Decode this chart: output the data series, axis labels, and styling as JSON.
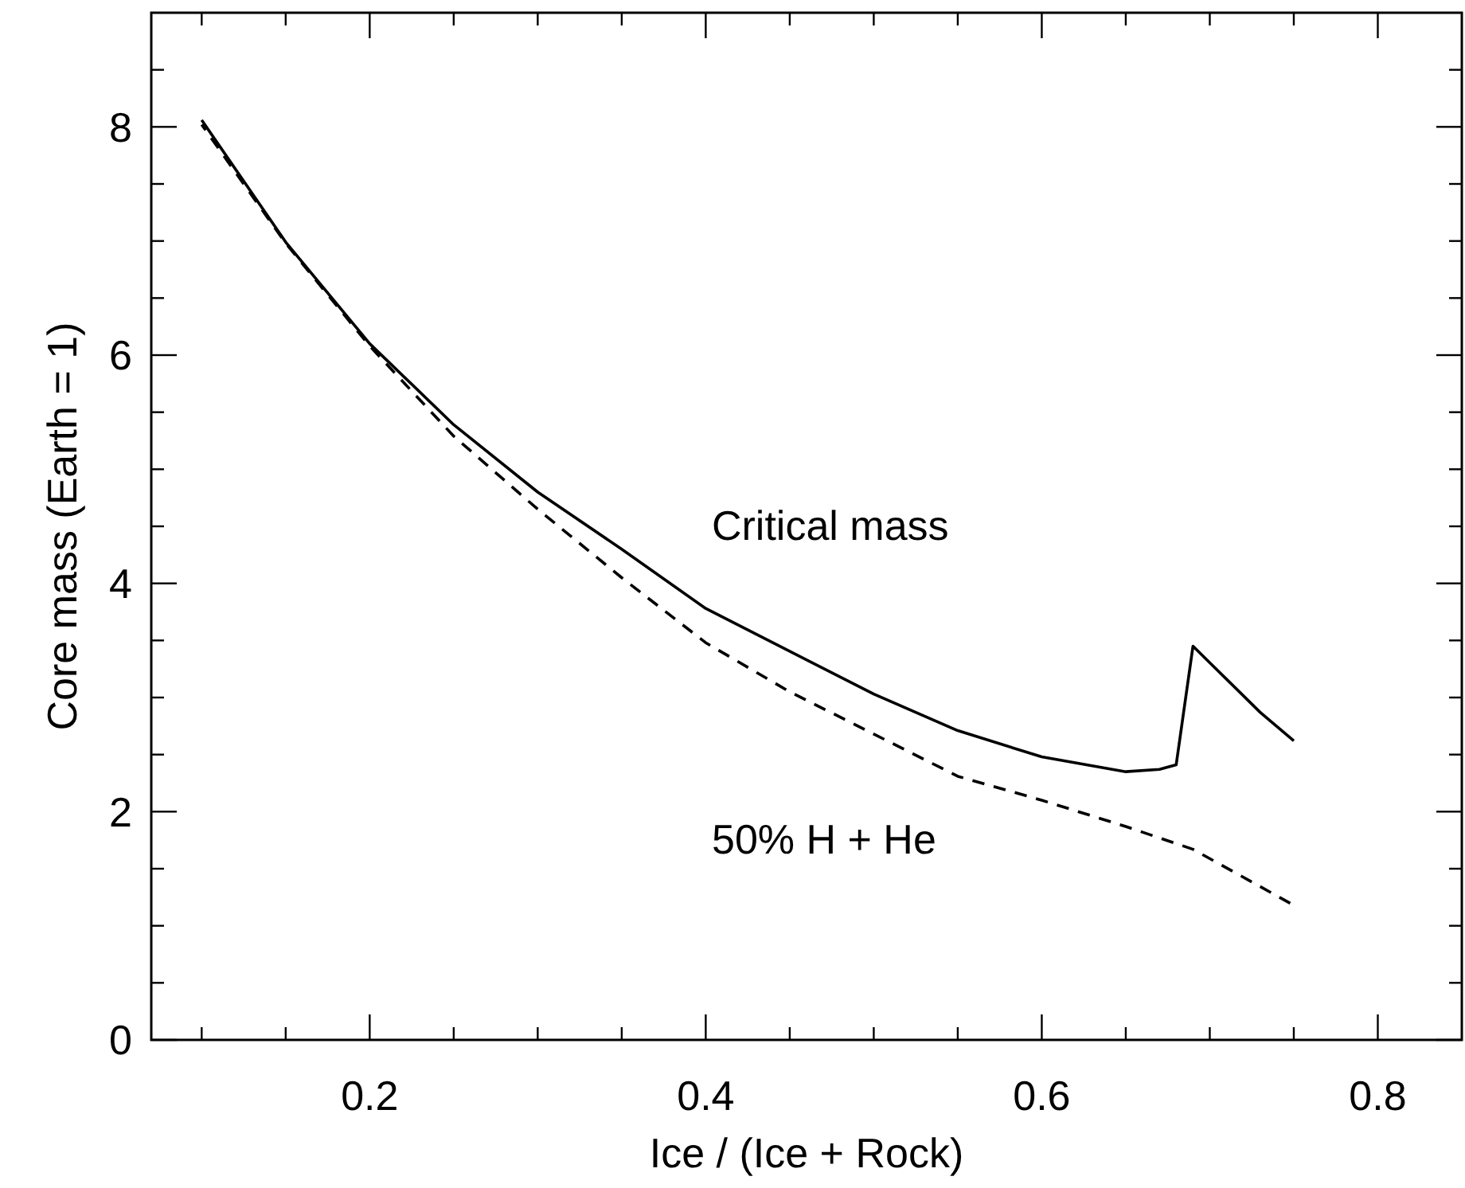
{
  "chart_data": {
    "type": "line",
    "xlabel": "Ice / (Ice + Rock)",
    "ylabel": "Core mass (Earth = 1)",
    "xlim": [
      0.07,
      0.85
    ],
    "ylim": [
      0,
      9
    ],
    "xticks": [
      {
        "value": 0.1,
        "label": null
      },
      {
        "value": 0.15,
        "label": null
      },
      0.2,
      {
        "value": 0.25,
        "label": null
      },
      {
        "value": 0.3,
        "label": null
      },
      {
        "value": 0.35,
        "label": null
      },
      0.4,
      {
        "value": 0.45,
        "label": null
      },
      {
        "value": 0.5,
        "label": null
      },
      {
        "value": 0.55,
        "label": null
      },
      0.6,
      {
        "value": 0.65,
        "label": null
      },
      {
        "value": 0.7,
        "label": null
      },
      {
        "value": 0.75,
        "label": null
      },
      0.8
    ],
    "yticks": [
      0,
      {
        "value": 0.5,
        "label": null
      },
      {
        "value": 1,
        "label": null
      },
      {
        "value": 1.5,
        "label": null
      },
      2,
      {
        "value": 2.5,
        "label": null
      },
      {
        "value": 3,
        "label": null
      },
      {
        "value": 3.5,
        "label": null
      },
      4,
      {
        "value": 4.5,
        "label": null
      },
      {
        "value": 5,
        "label": null
      },
      {
        "value": 5.5,
        "label": null
      },
      6,
      {
        "value": 6.5,
        "label": null
      },
      {
        "value": 7,
        "label": null
      },
      {
        "value": 7.5,
        "label": null
      },
      8,
      {
        "value": 8.5,
        "label": null
      }
    ],
    "grid": false,
    "marker": "none",
    "series": [
      {
        "color": "#000000",
        "line_style": "solid",
        "x": [
          0.1,
          0.15,
          0.2,
          0.25,
          0.3,
          0.35,
          0.4,
          0.5,
          0.55,
          0.6,
          0.65,
          0.67,
          0.68,
          0.69,
          0.73,
          0.75
        ],
        "values": [
          8.06,
          6.99,
          6.1,
          5.39,
          4.8,
          4.3,
          3.78,
          3.03,
          2.71,
          2.48,
          2.35,
          2.37,
          2.41,
          3.45,
          2.87,
          2.62
        ]
      },
      {
        "color": "#000000",
        "line_style": "dashed",
        "x": [
          0.1,
          0.15,
          0.2,
          0.25,
          0.3,
          0.35,
          0.4,
          0.45,
          0.5,
          0.55,
          0.6,
          0.65,
          0.69,
          0.75
        ],
        "values": [
          8.02,
          6.98,
          6.08,
          5.29,
          4.65,
          4.05,
          3.48,
          3.05,
          2.68,
          2.31,
          2.1,
          1.87,
          1.67,
          1.18
        ]
      }
    ],
    "annotations": [
      "Critical mass",
      "50% H + He"
    ]
  }
}
